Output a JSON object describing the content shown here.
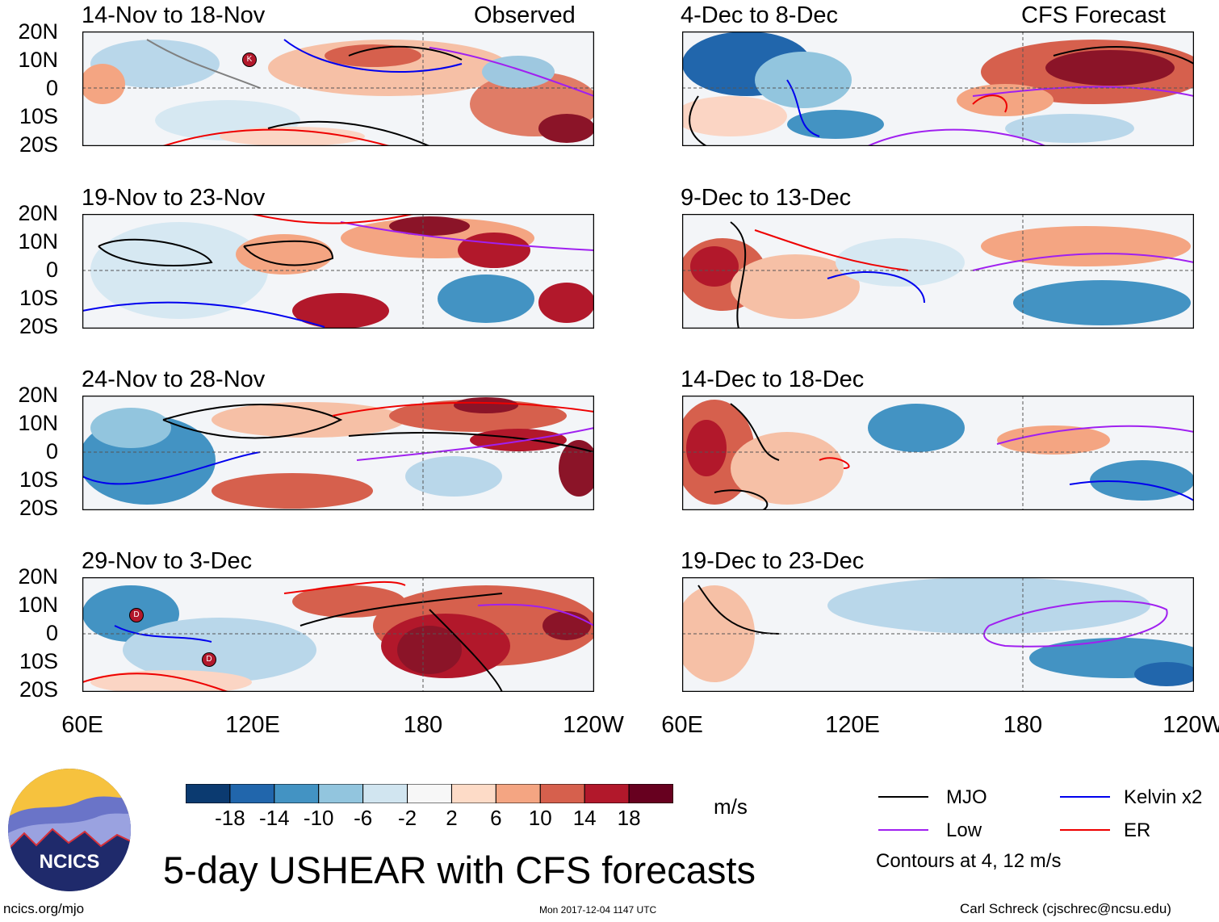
{
  "header": {
    "left_label": "Observed",
    "right_label": "CFS Forecast"
  },
  "panels_observed": [
    {
      "title": "14-Nov to 18-Nov",
      "storm_markers": [
        "K"
      ]
    },
    {
      "title": "19-Nov to 23-Nov",
      "storm_markers": []
    },
    {
      "title": "24-Nov to 28-Nov",
      "storm_markers": []
    },
    {
      "title": "29-Nov to 3-Dec",
      "storm_markers": [
        "D",
        "D"
      ]
    }
  ],
  "panels_forecast": [
    {
      "title": "4-Dec to 8-Dec"
    },
    {
      "title": "9-Dec to 13-Dec"
    },
    {
      "title": "14-Dec to 18-Dec"
    },
    {
      "title": "19-Dec to 23-Dec"
    }
  ],
  "latitude_labels": [
    "20N",
    "10N",
    "0",
    "10S",
    "20S"
  ],
  "longitude_labels": [
    "60E",
    "120E",
    "180",
    "120W"
  ],
  "colorbar": {
    "unit": "m/s",
    "tick_labels": [
      "-18",
      "-14",
      "-10",
      "-6",
      "-2",
      "2",
      "6",
      "10",
      "14",
      "18"
    ],
    "colors": [
      "#0b3a70",
      "#2166ac",
      "#4393c3",
      "#92c5de",
      "#d1e5f0",
      "#f7f7f7",
      "#fddbc7",
      "#f4a582",
      "#d6604d",
      "#b2182b",
      "#67001f"
    ]
  },
  "legend": {
    "items": [
      {
        "label": "MJO",
        "color": "#000000"
      },
      {
        "label": "Kelvin x2",
        "color": "#0000ee"
      },
      {
        "label": "Low",
        "color": "#a020f0"
      },
      {
        "label": "ER",
        "color": "#ee0000"
      }
    ],
    "note": "Contours at 4, 12 m/s"
  },
  "branding": {
    "logo_text": "NCICS",
    "url": "ncics.org/mjo",
    "main_title": "5-day USHEAR with CFS forecasts",
    "timestamp": "Mon 2017-12-04 1147 UTC",
    "credit": "Carl Schreck (cjschrec@ncsu.edu)"
  }
}
